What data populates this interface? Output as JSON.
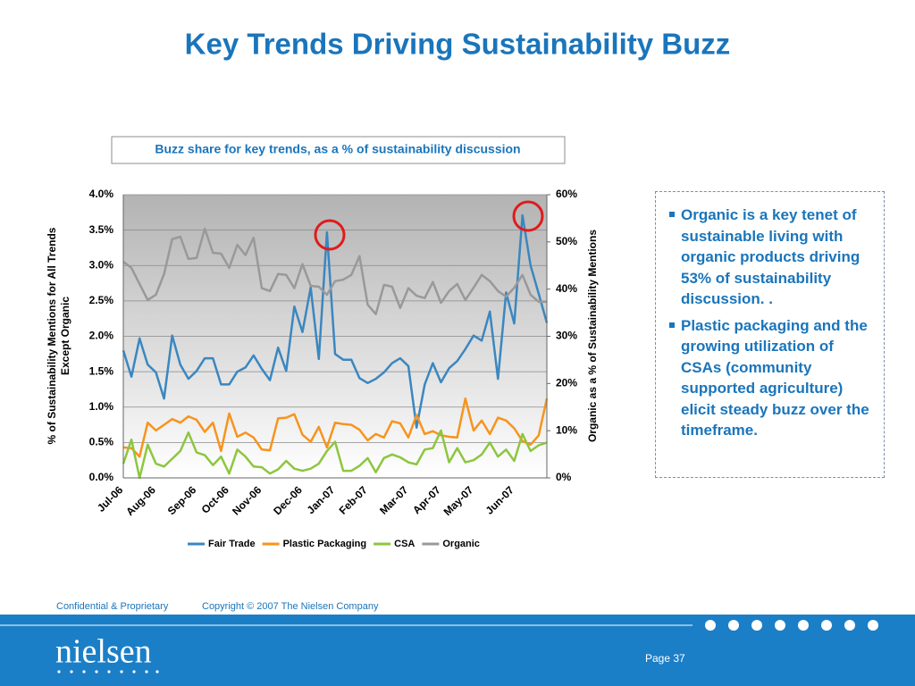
{
  "title": "Key Trends Driving Sustainability Buzz",
  "chart_data": {
    "type": "line",
    "subtitle": "Buzz share for key trends, as a % of sustainability discussion",
    "ylabel": [
      "% of Sustainability Mentions for All Trends",
      "Except Organic"
    ],
    "y2label": "Organic as a % of Sustainability Mentions",
    "categories": [
      "Jul-06",
      null,
      null,
      null,
      "Aug-06",
      null,
      null,
      null,
      null,
      "Sep-06",
      null,
      null,
      null,
      "Oct-06",
      null,
      null,
      null,
      "Nov-06",
      null,
      null,
      null,
      null,
      "Dec-06",
      null,
      null,
      null,
      "Jan-07",
      null,
      null,
      null,
      "Feb-07",
      null,
      null,
      null,
      null,
      "Mar-07",
      null,
      null,
      null,
      "Apr-07",
      null,
      null,
      null,
      "May-07",
      null,
      null,
      null,
      null,
      "Jun-07",
      null,
      null,
      null,
      null
    ],
    "ylim": [
      0,
      4
    ],
    "yticks": [
      {
        "value": 0,
        "label": "0.0%"
      },
      {
        "value": 0.5,
        "label": "0.5%"
      },
      {
        "value": 1,
        "label": "1.0%"
      },
      {
        "value": 1.5,
        "label": "1.5%"
      },
      {
        "value": 2,
        "label": "2.0%"
      },
      {
        "value": 2.5,
        "label": "2.5%"
      },
      {
        "value": 3,
        "label": "3.0%"
      },
      {
        "value": 3.5,
        "label": "3.5%"
      },
      {
        "value": 4,
        "label": "4.0%"
      }
    ],
    "y2lim": [
      0,
      60
    ],
    "y2ticks": [
      {
        "value": 0,
        "label": "0%"
      },
      {
        "value": 10,
        "label": "10%"
      },
      {
        "value": 20,
        "label": "20%"
      },
      {
        "value": 30,
        "label": "30%"
      },
      {
        "value": 40,
        "label": "40%"
      },
      {
        "value": 50,
        "label": "50%"
      },
      {
        "value": 60,
        "label": "60%"
      }
    ],
    "grid": true,
    "legend": "bottom",
    "series": [
      {
        "name": "Fair Trade",
        "color": "#3a87c0",
        "values": [
          1.8,
          1.43,
          1.97,
          1.6,
          1.49,
          1.12,
          2.01,
          1.6,
          1.4,
          1.51,
          1.69,
          1.69,
          1.32,
          1.32,
          1.5,
          1.56,
          1.73,
          1.54,
          1.38,
          1.84,
          1.51,
          2.42,
          2.06,
          2.69,
          1.68,
          3.47,
          1.75,
          1.67,
          1.67,
          1.41,
          1.34,
          1.4,
          1.49,
          1.62,
          1.69,
          1.58,
          0.71,
          1.32,
          1.62,
          1.35,
          1.55,
          1.65,
          1.82,
          2.01,
          1.94,
          2.35,
          1.4,
          2.62,
          2.18,
          3.71,
          3.0,
          2.6,
          2.19
        ]
      },
      {
        "name": "Plastic Packaging",
        "color": "#f7941d",
        "values": [
          0.43,
          0.42,
          0.3,
          0.78,
          0.67,
          0.75,
          0.83,
          0.78,
          0.87,
          0.82,
          0.65,
          0.78,
          0.38,
          0.91,
          0.58,
          0.64,
          0.57,
          0.4,
          0.39,
          0.84,
          0.85,
          0.9,
          0.61,
          0.51,
          0.72,
          0.43,
          0.78,
          0.76,
          0.75,
          0.68,
          0.53,
          0.62,
          0.57,
          0.8,
          0.77,
          0.57,
          0.89,
          0.62,
          0.66,
          0.6,
          0.58,
          0.57,
          1.12,
          0.67,
          0.81,
          0.62,
          0.85,
          0.81,
          0.7,
          0.52,
          0.47,
          0.6,
          1.12
        ]
      },
      {
        "name": "CSA",
        "color": "#8dc63f",
        "values": [
          0.2,
          0.54,
          0.0,
          0.47,
          0.2,
          0.16,
          0.27,
          0.38,
          0.64,
          0.36,
          0.32,
          0.18,
          0.3,
          0.06,
          0.4,
          0.3,
          0.16,
          0.15,
          0.06,
          0.12,
          0.24,
          0.13,
          0.1,
          0.13,
          0.2,
          0.38,
          0.51,
          0.1,
          0.1,
          0.17,
          0.28,
          0.08,
          0.28,
          0.33,
          0.29,
          0.22,
          0.19,
          0.4,
          0.42,
          0.67,
          0.22,
          0.42,
          0.22,
          0.25,
          0.33,
          0.5,
          0.3,
          0.4,
          0.24,
          0.62,
          0.38,
          0.46,
          0.5
        ]
      },
      {
        "name": "Organic",
        "color": "#999999",
        "axis": "y2",
        "values": [
          45.8,
          44.5,
          41.1,
          37.7,
          38.8,
          43.2,
          50.6,
          51.1,
          46.4,
          46.6,
          52.8,
          47.7,
          47.5,
          44.5,
          49.4,
          47.2,
          50.9,
          40.2,
          39.6,
          43.2,
          43.0,
          40.2,
          45.3,
          40.7,
          40.5,
          38.8,
          41.7,
          42.0,
          43.0,
          47.0,
          36.7,
          34.7,
          40.9,
          40.5,
          36.0,
          40.2,
          38.6,
          38.1,
          41.5,
          37.1,
          39.6,
          41.1,
          37.7,
          40.3,
          43.0,
          41.7,
          39.6,
          38.4,
          40.3,
          43.0,
          38.8,
          37.3,
          37.3
        ]
      }
    ]
  },
  "notes": [
    "Organic is a key tenet of sustainable living with organic products driving 53% of sustainability discussion. .",
    "Plastic packaging and the growing utilization of CSAs (community supported agriculture) elicit steady buzz over the timeframe."
  ],
  "footer": {
    "confidential": "Confidential & Proprietary",
    "copyright": "Copyright © 2007 The Nielsen Company",
    "logo": "nielsen",
    "page": "Page 37"
  }
}
